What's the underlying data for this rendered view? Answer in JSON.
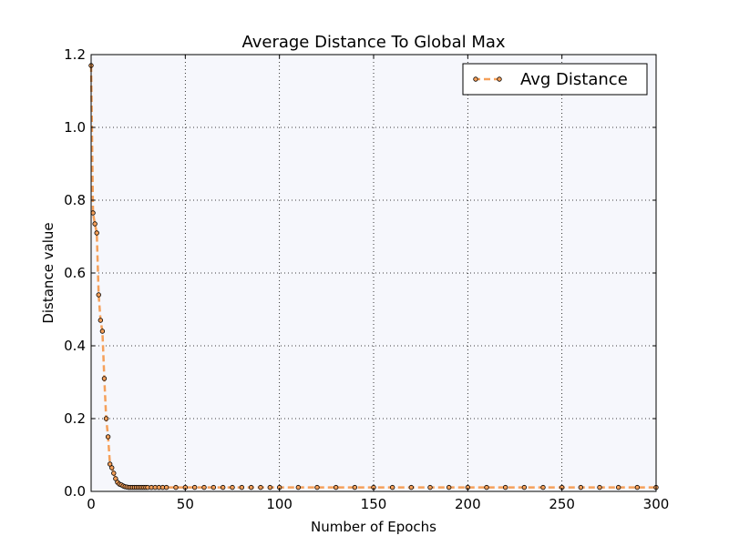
{
  "chart_data": {
    "type": "line",
    "title": "Average Distance To Global Max",
    "xlabel": "Number of Epochs",
    "ylabel": "Distance value",
    "xlim": [
      0,
      300
    ],
    "ylim": [
      0,
      1.2
    ],
    "xticks": [
      0,
      50,
      100,
      150,
      200,
      250,
      300
    ],
    "xtick_labels": [
      "0",
      "50",
      "100",
      "150",
      "200",
      "250",
      "300"
    ],
    "yticks": [
      0.0,
      0.2,
      0.4,
      0.6,
      0.8,
      1.0,
      1.2
    ],
    "ytick_labels": [
      "0.0",
      "0.2",
      "0.4",
      "0.6",
      "0.8",
      "1.0",
      "1.2"
    ],
    "grid": true,
    "legend_position": "top-right",
    "series": [
      {
        "name": "Avg Distance",
        "color": "#f5a05a",
        "marker_color": "#f5a05a",
        "marker_edge": "#000000",
        "line_style": "dashed",
        "x": [
          0,
          1,
          2,
          3,
          4,
          5,
          6,
          7,
          8,
          9,
          10,
          11,
          12,
          13,
          14,
          15,
          16,
          17,
          18,
          19,
          20,
          21,
          22,
          23,
          24,
          25,
          26,
          27,
          28,
          29,
          30,
          32,
          34,
          36,
          38,
          40,
          45,
          50,
          55,
          60,
          65,
          70,
          75,
          80,
          85,
          90,
          95,
          100,
          110,
          120,
          130,
          140,
          150,
          160,
          170,
          180,
          190,
          200,
          210,
          220,
          230,
          240,
          250,
          260,
          270,
          280,
          290,
          300
        ],
        "y": [
          1.17,
          0.765,
          0.735,
          0.71,
          0.54,
          0.47,
          0.44,
          0.31,
          0.2,
          0.15,
          0.075,
          0.065,
          0.05,
          0.035,
          0.025,
          0.02,
          0.018,
          0.015,
          0.013,
          0.012,
          0.011,
          0.011,
          0.011,
          0.011,
          0.011,
          0.011,
          0.011,
          0.011,
          0.011,
          0.011,
          0.011,
          0.011,
          0.011,
          0.011,
          0.011,
          0.011,
          0.011,
          0.011,
          0.011,
          0.011,
          0.011,
          0.011,
          0.011,
          0.011,
          0.011,
          0.011,
          0.011,
          0.011,
          0.011,
          0.011,
          0.011,
          0.011,
          0.011,
          0.011,
          0.011,
          0.011,
          0.011,
          0.011,
          0.011,
          0.011,
          0.011,
          0.011,
          0.011,
          0.011,
          0.011,
          0.011,
          0.011,
          0.011
        ]
      }
    ]
  }
}
